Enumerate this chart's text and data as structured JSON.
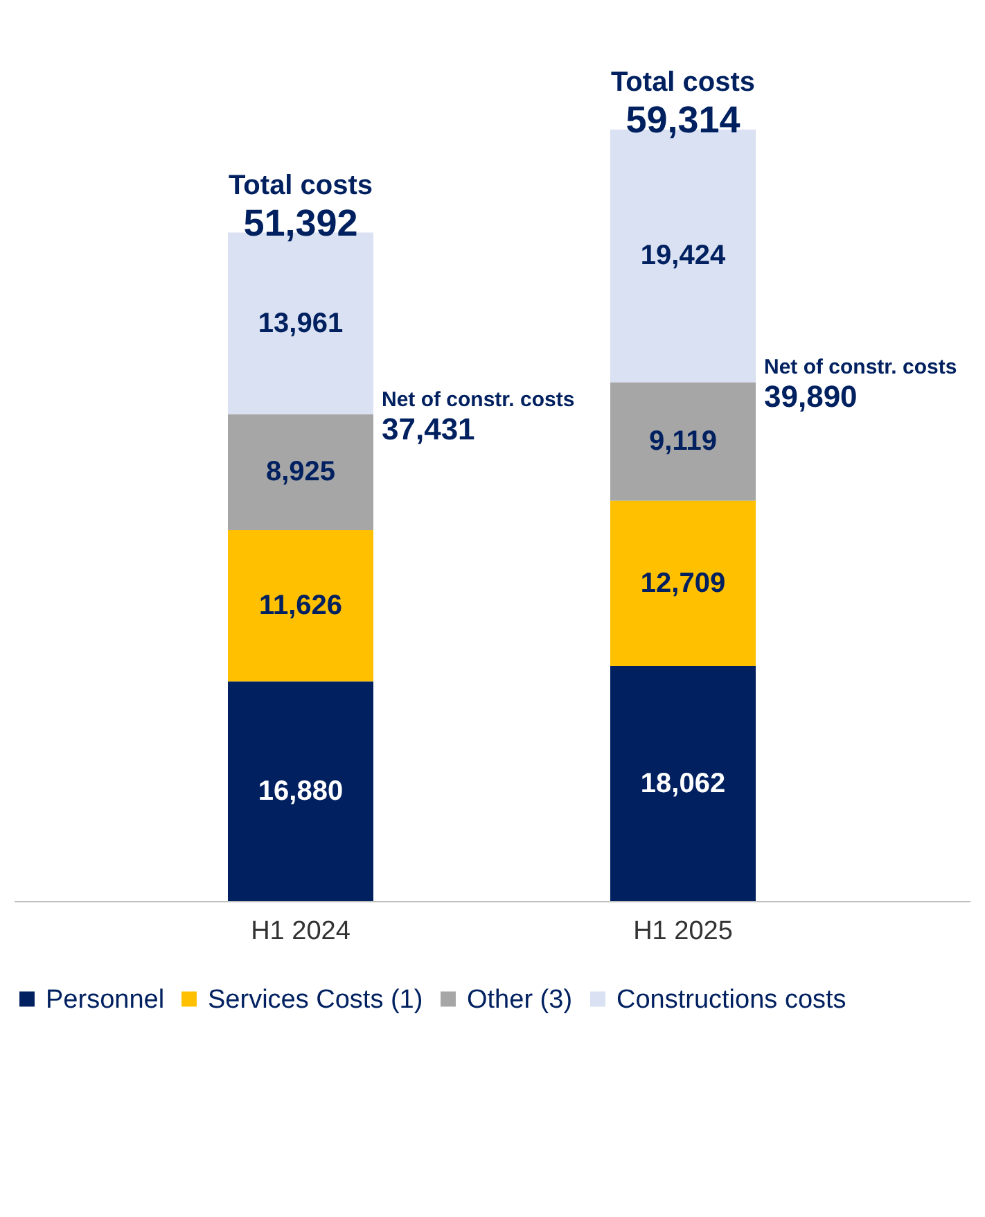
{
  "chart_data": {
    "type": "bar",
    "stacked": true,
    "categories": [
      "H1 2024",
      "H1 2025"
    ],
    "series": [
      {
        "name": "Personnel",
        "color": "#002060",
        "values": [
          16880,
          18062
        ],
        "value_labels": [
          "16,880",
          "18,062"
        ]
      },
      {
        "name": "Services Costs (1)",
        "color": "#ffc000",
        "values": [
          11626,
          12709
        ],
        "value_labels": [
          "11,626",
          "12,709"
        ]
      },
      {
        "name": "Other (3)",
        "color": "#a6a6a6",
        "values": [
          8925,
          9119
        ],
        "value_labels": [
          "8,925",
          "9,119"
        ]
      },
      {
        "name": "Constructions costs",
        "color": "#d9e1f2",
        "values": [
          13961,
          19424
        ],
        "value_labels": [
          "13,961",
          "19,424"
        ]
      }
    ],
    "legend": "bottom",
    "grid": false,
    "annotations": [
      "Net of constr. costs",
      {
        "text": "37,431",
        "x": "H1 2024",
        "y": 37431
      },
      {
        "text": "Total costs",
        "x": "H1 2024",
        "y": 51392
      },
      {
        "text": "51,392",
        "x": "H1 2024",
        "y": 51392
      },
      "Net of constr. costs",
      {
        "text": "39,890",
        "x": "H1 2025",
        "y": 39890
      },
      {
        "text": "Total costs",
        "x": "H1 2025",
        "y": 59314
      },
      {
        "text": "59,314",
        "x": "H1 2025",
        "y": 59314
      }
    ]
  }
}
